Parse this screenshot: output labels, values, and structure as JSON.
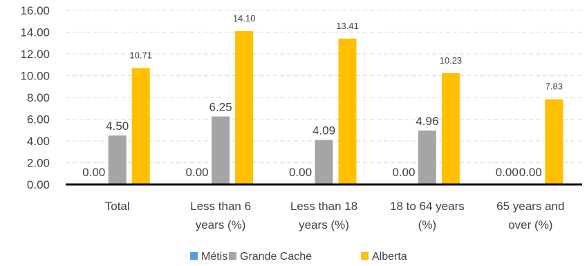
{
  "chart_data": {
    "type": "bar",
    "categories": [
      [
        "Total"
      ],
      [
        "Less than 6",
        "years (%)"
      ],
      [
        "Less than 18",
        "years (%)"
      ],
      [
        "18 to 64 years",
        "(%)"
      ],
      [
        "65 years and",
        "over (%)"
      ]
    ],
    "series": [
      {
        "name": "Métis",
        "color": "#5B9BD5",
        "values": [
          0.0,
          0.0,
          0.0,
          0.0,
          0.0
        ],
        "labels": [
          "0.00",
          "0.00",
          "0.00",
          "0.00",
          "0.00"
        ]
      },
      {
        "name": "Grande Cache",
        "color": "#A5A5A5",
        "values": [
          4.5,
          6.25,
          4.09,
          4.96,
          0.0
        ],
        "labels": [
          "4.50",
          "6.25",
          "4.09",
          "4.96",
          "0.00"
        ]
      },
      {
        "name": "Alberta",
        "color": "#FFC000",
        "values": [
          10.71,
          14.1,
          13.41,
          10.23,
          7.83
        ],
        "labels": [
          "10.71",
          "14.10",
          "13.41",
          "10.23",
          "7.83"
        ]
      }
    ],
    "ylim": [
      0,
      16
    ],
    "yticks": [
      "0.00",
      "2.00",
      "4.00",
      "6.00",
      "8.00",
      "10.00",
      "12.00",
      "14.00",
      "16.00"
    ],
    "grid": true,
    "legend": "bottom"
  }
}
